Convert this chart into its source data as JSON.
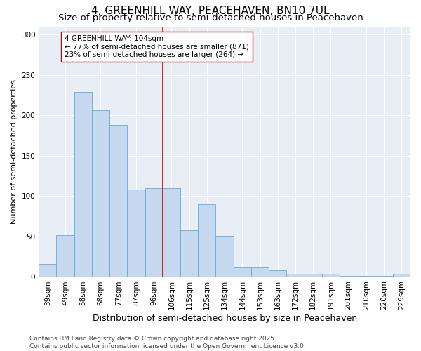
{
  "title": "4, GREENHILL WAY, PEACEHAVEN, BN10 7UL",
  "subtitle": "Size of property relative to semi-detached houses in Peacehaven",
  "xlabel": "Distribution of semi-detached houses by size in Peacehaven",
  "ylabel": "Number of semi-detached properties",
  "categories": [
    "39sqm",
    "49sqm",
    "58sqm",
    "68sqm",
    "77sqm",
    "87sqm",
    "96sqm",
    "106sqm",
    "115sqm",
    "125sqm",
    "134sqm",
    "144sqm",
    "153sqm",
    "163sqm",
    "172sqm",
    "182sqm",
    "191sqm",
    "201sqm",
    "210sqm",
    "220sqm",
    "229sqm"
  ],
  "values": [
    16,
    52,
    229,
    206,
    188,
    108,
    110,
    110,
    58,
    90,
    51,
    12,
    12,
    8,
    4,
    4,
    4,
    1,
    1,
    1,
    4
  ],
  "bar_color": "#c5d8ef",
  "bar_edge_color": "#6aaad4",
  "vline_index": 7,
  "annotation_text": "4 GREENHILL WAY: 104sqm\n← 77% of semi-detached houses are smaller (871)\n23% of semi-detached houses are larger (264) →",
  "annotation_box_facecolor": "#ffffff",
  "annotation_box_edgecolor": "#cc0000",
  "vline_color": "#cc0000",
  "ylim": [
    0,
    310
  ],
  "yticks": [
    0,
    50,
    100,
    150,
    200,
    250,
    300
  ],
  "background_color": "#e8eef6",
  "grid_color": "#ffffff",
  "footer_text": "Contains HM Land Registry data © Crown copyright and database right 2025.\nContains public sector information licensed under the Open Government Licence v3.0.",
  "title_fontsize": 11,
  "subtitle_fontsize": 9.5,
  "xlabel_fontsize": 9,
  "ylabel_fontsize": 8,
  "tick_fontsize": 7.5,
  "annotation_fontsize": 7.5,
  "footer_fontsize": 6.5
}
